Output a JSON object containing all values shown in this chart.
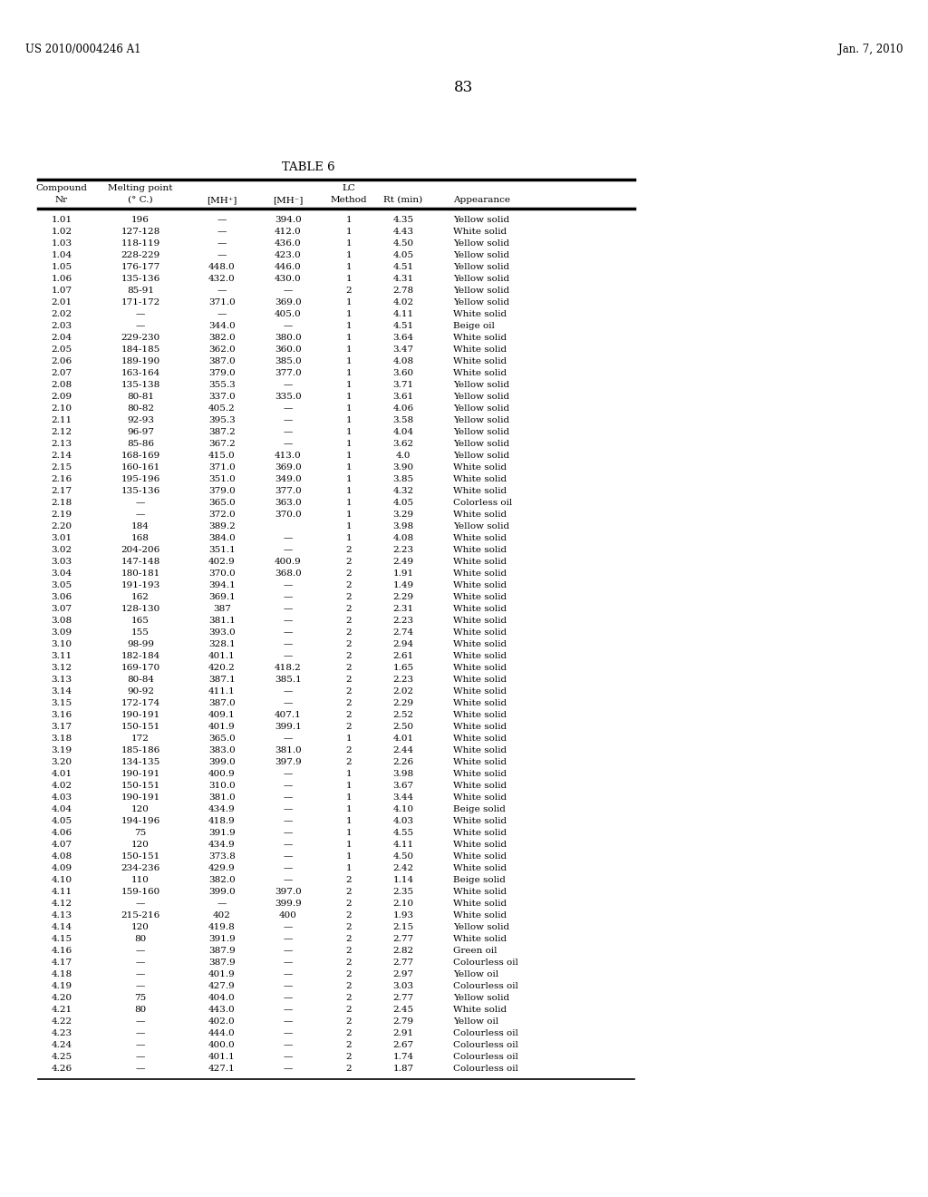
{
  "header_line1": "US 2010/0004246 A1",
  "header_right": "Jan. 7, 2010",
  "page_number": "83",
  "table_title": "TABLE 6",
  "rows": [
    [
      "1.01",
      "196",
      "—",
      "394.0",
      "1",
      "4.35",
      "Yellow solid"
    ],
    [
      "1.02",
      "127-128",
      "—",
      "412.0",
      "1",
      "4.43",
      "White solid"
    ],
    [
      "1.03",
      "118-119",
      "—",
      "436.0",
      "1",
      "4.50",
      "Yellow solid"
    ],
    [
      "1.04",
      "228-229",
      "—",
      "423.0",
      "1",
      "4.05",
      "Yellow solid"
    ],
    [
      "1.05",
      "176-177",
      "448.0",
      "446.0",
      "1",
      "4.51",
      "Yellow solid"
    ],
    [
      "1.06",
      "135-136",
      "432.0",
      "430.0",
      "1",
      "4.31",
      "Yellow solid"
    ],
    [
      "1.07",
      "85-91",
      "—",
      "—",
      "2",
      "2.78",
      "Yellow solid"
    ],
    [
      "2.01",
      "171-172",
      "371.0",
      "369.0",
      "1",
      "4.02",
      "Yellow solid"
    ],
    [
      "2.02",
      "—",
      "—",
      "405.0",
      "1",
      "4.11",
      "White solid"
    ],
    [
      "2.03",
      "—",
      "344.0",
      "—",
      "1",
      "4.51",
      "Beige oil"
    ],
    [
      "2.04",
      "229-230",
      "382.0",
      "380.0",
      "1",
      "3.64",
      "White solid"
    ],
    [
      "2.05",
      "184-185",
      "362.0",
      "360.0",
      "1",
      "3.47",
      "White solid"
    ],
    [
      "2.06",
      "189-190",
      "387.0",
      "385.0",
      "1",
      "4.08",
      "White solid"
    ],
    [
      "2.07",
      "163-164",
      "379.0",
      "377.0",
      "1",
      "3.60",
      "White solid"
    ],
    [
      "2.08",
      "135-138",
      "355.3",
      "—",
      "1",
      "3.71",
      "Yellow solid"
    ],
    [
      "2.09",
      "80-81",
      "337.0",
      "335.0",
      "1",
      "3.61",
      "Yellow solid"
    ],
    [
      "2.10",
      "80-82",
      "405.2",
      "—",
      "1",
      "4.06",
      "Yellow solid"
    ],
    [
      "2.11",
      "92-93",
      "395.3",
      "—",
      "1",
      "3.58",
      "Yellow solid"
    ],
    [
      "2.12",
      "96-97",
      "387.2",
      "—",
      "1",
      "4.04",
      "Yellow solid"
    ],
    [
      "2.13",
      "85-86",
      "367.2",
      "—",
      "1",
      "3.62",
      "Yellow solid"
    ],
    [
      "2.14",
      "168-169",
      "415.0",
      "413.0",
      "1",
      "4.0",
      "Yellow solid"
    ],
    [
      "2.15",
      "160-161",
      "371.0",
      "369.0",
      "1",
      "3.90",
      "White solid"
    ],
    [
      "2.16",
      "195-196",
      "351.0",
      "349.0",
      "1",
      "3.85",
      "White solid"
    ],
    [
      "2.17",
      "135-136",
      "379.0",
      "377.0",
      "1",
      "4.32",
      "White solid"
    ],
    [
      "2.18",
      "—",
      "365.0",
      "363.0",
      "1",
      "4.05",
      "Colorless oil"
    ],
    [
      "2.19",
      "—",
      "372.0",
      "370.0",
      "1",
      "3.29",
      "White solid"
    ],
    [
      "2.20",
      "184",
      "389.2",
      "",
      "1",
      "3.98",
      "Yellow solid"
    ],
    [
      "3.01",
      "168",
      "384.0",
      "—",
      "1",
      "4.08",
      "White solid"
    ],
    [
      "3.02",
      "204-206",
      "351.1",
      "—",
      "2",
      "2.23",
      "White solid"
    ],
    [
      "3.03",
      "147-148",
      "402.9",
      "400.9",
      "2",
      "2.49",
      "White solid"
    ],
    [
      "3.04",
      "180-181",
      "370.0",
      "368.0",
      "2",
      "1.91",
      "White solid"
    ],
    [
      "3.05",
      "191-193",
      "394.1",
      "—",
      "2",
      "1.49",
      "White solid"
    ],
    [
      "3.06",
      "162",
      "369.1",
      "—",
      "2",
      "2.29",
      "White solid"
    ],
    [
      "3.07",
      "128-130",
      "387",
      "—",
      "2",
      "2.31",
      "White solid"
    ],
    [
      "3.08",
      "165",
      "381.1",
      "—",
      "2",
      "2.23",
      "White solid"
    ],
    [
      "3.09",
      "155",
      "393.0",
      "—",
      "2",
      "2.74",
      "White solid"
    ],
    [
      "3.10",
      "98-99",
      "328.1",
      "—",
      "2",
      "2.94",
      "White solid"
    ],
    [
      "3.11",
      "182-184",
      "401.1",
      "—",
      "2",
      "2.61",
      "White solid"
    ],
    [
      "3.12",
      "169-170",
      "420.2",
      "418.2",
      "2",
      "1.65",
      "White solid"
    ],
    [
      "3.13",
      "80-84",
      "387.1",
      "385.1",
      "2",
      "2.23",
      "White solid"
    ],
    [
      "3.14",
      "90-92",
      "411.1",
      "—",
      "2",
      "2.02",
      "White solid"
    ],
    [
      "3.15",
      "172-174",
      "387.0",
      "—",
      "2",
      "2.29",
      "White solid"
    ],
    [
      "3.16",
      "190-191",
      "409.1",
      "407.1",
      "2",
      "2.52",
      "White solid"
    ],
    [
      "3.17",
      "150-151",
      "401.9",
      "399.1",
      "2",
      "2.50",
      "White solid"
    ],
    [
      "3.18",
      "172",
      "365.0",
      "—",
      "1",
      "4.01",
      "White solid"
    ],
    [
      "3.19",
      "185-186",
      "383.0",
      "381.0",
      "2",
      "2.44",
      "White solid"
    ],
    [
      "3.20",
      "134-135",
      "399.0",
      "397.9",
      "2",
      "2.26",
      "White solid"
    ],
    [
      "4.01",
      "190-191",
      "400.9",
      "—",
      "1",
      "3.98",
      "White solid"
    ],
    [
      "4.02",
      "150-151",
      "310.0",
      "—",
      "1",
      "3.67",
      "White solid"
    ],
    [
      "4.03",
      "190-191",
      "381.0",
      "—",
      "1",
      "3.44",
      "White solid"
    ],
    [
      "4.04",
      "120",
      "434.9",
      "—",
      "1",
      "4.10",
      "Beige solid"
    ],
    [
      "4.05",
      "194-196",
      "418.9",
      "—",
      "1",
      "4.03",
      "White solid"
    ],
    [
      "4.06",
      "75",
      "391.9",
      "—",
      "1",
      "4.55",
      "White solid"
    ],
    [
      "4.07",
      "120",
      "434.9",
      "—",
      "1",
      "4.11",
      "White solid"
    ],
    [
      "4.08",
      "150-151",
      "373.8",
      "—",
      "1",
      "4.50",
      "White solid"
    ],
    [
      "4.09",
      "234-236",
      "429.9",
      "—",
      "1",
      "2.42",
      "White solid"
    ],
    [
      "4.10",
      "110",
      "382.0",
      "—",
      "2",
      "1.14",
      "Beige solid"
    ],
    [
      "4.11",
      "159-160",
      "399.0",
      "397.0",
      "2",
      "2.35",
      "White solid"
    ],
    [
      "4.12",
      "—",
      "—",
      "399.9",
      "2",
      "2.10",
      "White solid"
    ],
    [
      "4.13",
      "215-216",
      "402",
      "400",
      "2",
      "1.93",
      "White solid"
    ],
    [
      "4.14",
      "120",
      "419.8",
      "—",
      "2",
      "2.15",
      "Yellow solid"
    ],
    [
      "4.15",
      "80",
      "391.9",
      "—",
      "2",
      "2.77",
      "White solid"
    ],
    [
      "4.16",
      "—",
      "387.9",
      "—",
      "2",
      "2.82",
      "Green oil"
    ],
    [
      "4.17",
      "—",
      "387.9",
      "—",
      "2",
      "2.77",
      "Colourless oil"
    ],
    [
      "4.18",
      "—",
      "401.9",
      "—",
      "2",
      "2.97",
      "Yellow oil"
    ],
    [
      "4.19",
      "—",
      "427.9",
      "—",
      "2",
      "3.03",
      "Colourless oil"
    ],
    [
      "4.20",
      "75",
      "404.0",
      "—",
      "2",
      "2.77",
      "Yellow solid"
    ],
    [
      "4.21",
      "80",
      "443.0",
      "—",
      "2",
      "2.45",
      "White solid"
    ],
    [
      "4.22",
      "—",
      "402.0",
      "—",
      "2",
      "2.79",
      "Yellow oil"
    ],
    [
      "4.23",
      "—",
      "444.0",
      "—",
      "2",
      "2.91",
      "Colourless oil"
    ],
    [
      "4.24",
      "—",
      "400.0",
      "—",
      "2",
      "2.67",
      "Colourless oil"
    ],
    [
      "4.25",
      "—",
      "401.1",
      "—",
      "2",
      "1.74",
      "Colourless oil"
    ],
    [
      "4.26",
      "—",
      "427.1",
      "—",
      "2",
      "1.87",
      "Colourless oil"
    ]
  ]
}
